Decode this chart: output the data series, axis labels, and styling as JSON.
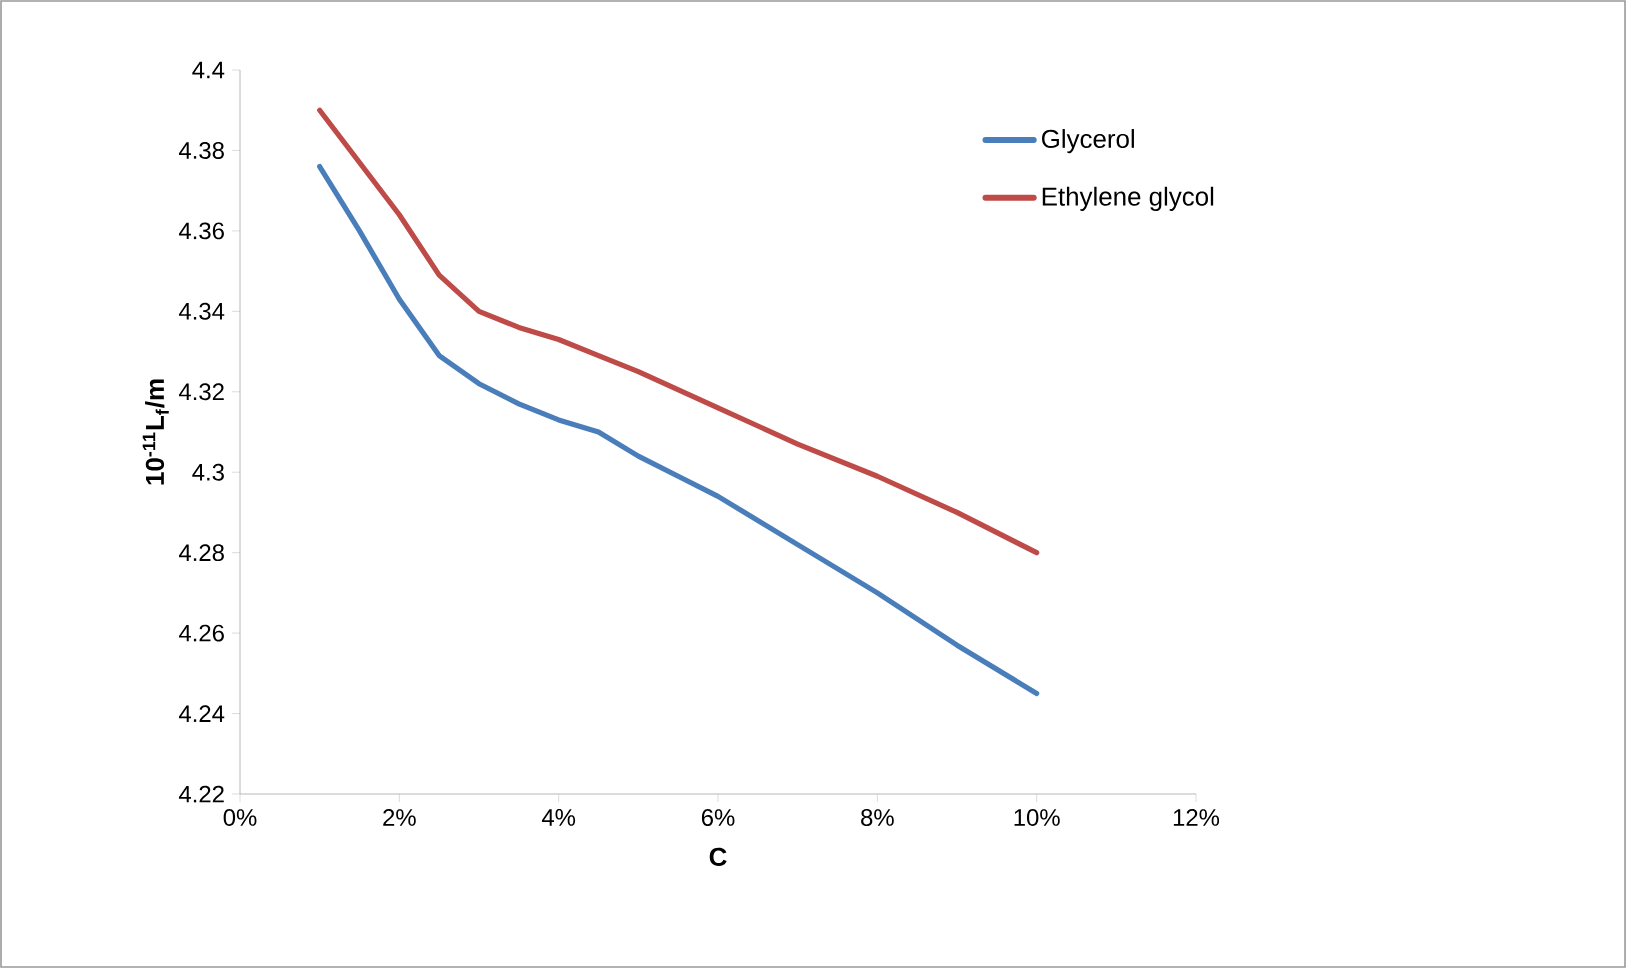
{
  "chart_data": {
    "type": "line",
    "xlabel": "C",
    "ylabel": "10$^{-11}$L$_{f}$/m",
    "xlim": [
      0,
      12
    ],
    "xticks": [
      {
        "value": 0,
        "label": "0%"
      },
      {
        "value": 2,
        "label": "2%"
      },
      {
        "value": 4,
        "label": "4%"
      },
      {
        "value": 6,
        "label": "6%"
      },
      {
        "value": 8,
        "label": "8%"
      },
      {
        "value": 10,
        "label": "10%"
      },
      {
        "value": 12,
        "label": "12%"
      }
    ],
    "ylim": [
      4.22,
      4.4
    ],
    "yticks": [
      4.22,
      4.24,
      4.26,
      4.28,
      4.3,
      4.32,
      4.34,
      4.36,
      4.38,
      4.4
    ],
    "legend": "top right",
    "grid": false,
    "marker": "none",
    "line_style": "solid",
    "series": [
      {
        "name": "Glycerol",
        "color": "#4a7ebb",
        "x": [
          1,
          1.5,
          2,
          2.5,
          3,
          3.5,
          4,
          4.5,
          5,
          5.5,
          6,
          7,
          8,
          9,
          10
        ],
        "values": [
          4.376,
          4.36,
          4.343,
          4.329,
          4.322,
          4.317,
          4.313,
          4.31,
          4.304,
          4.299,
          4.294,
          4.282,
          4.27,
          4.257,
          4.245
        ]
      },
      {
        "name": "Ethylene glycol",
        "color": "#be4b48",
        "x": [
          1,
          1.5,
          2,
          2.5,
          3,
          3.5,
          4,
          4.5,
          5,
          6,
          7,
          8,
          9,
          10
        ],
        "values": [
          4.39,
          4.377,
          4.364,
          4.349,
          4.34,
          4.336,
          4.333,
          4.329,
          4.325,
          4.316,
          4.307,
          4.299,
          4.29,
          4.28
        ]
      }
    ]
  }
}
